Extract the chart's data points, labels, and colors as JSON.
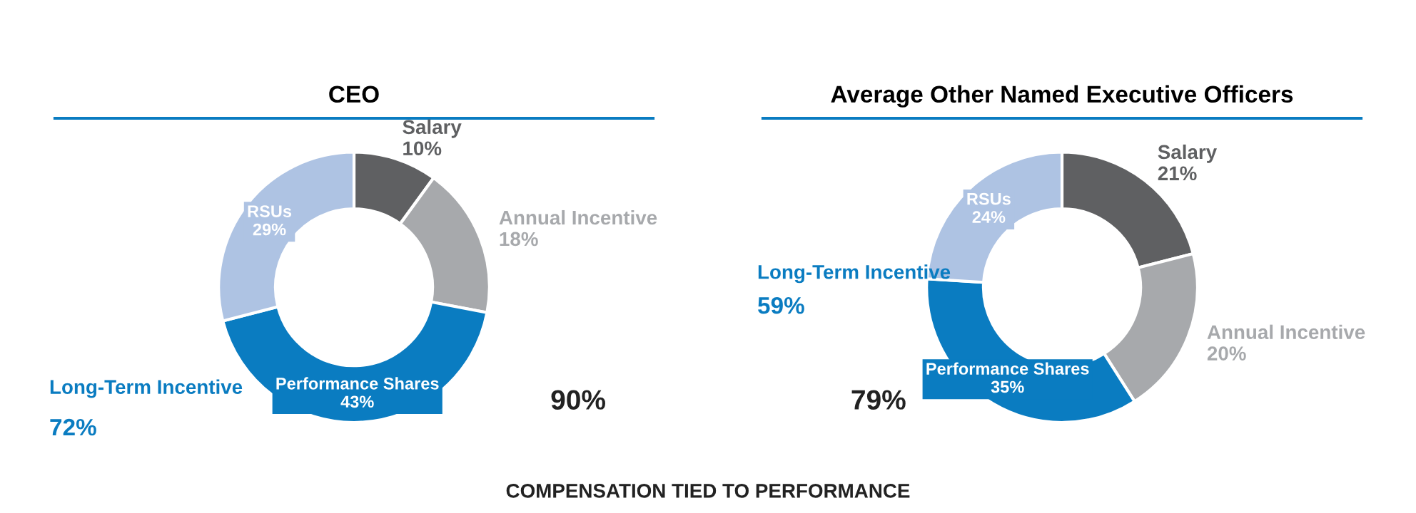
{
  "chart_data": [
    {
      "type": "donut",
      "title": "CEO",
      "categories": [
        "Salary",
        "Annual Incentive",
        "Performance Shares",
        "RSUs"
      ],
      "values": [
        10,
        18,
        43,
        29
      ],
      "value_labels": [
        "10%",
        "18%",
        "43%",
        "29%"
      ],
      "colors": [
        "#5f6062",
        "#a7a9ac",
        "#0a7cc1",
        "#aec3e3"
      ],
      "annotations": [
        "Long-Term Incentive",
        "72%",
        "90%"
      ]
    },
    {
      "type": "donut",
      "title": "Average Other Named Executive Officers",
      "categories": [
        "Salary",
        "Annual Incentive",
        "Performance Shares",
        "RSUs"
      ],
      "values": [
        21,
        20,
        35,
        24
      ],
      "value_labels": [
        "21%",
        "20%",
        "35%",
        "24%"
      ],
      "colors": [
        "#5f6062",
        "#a7a9ac",
        "#0a7cc1",
        "#aec3e3"
      ],
      "annotations": [
        "Long-Term Incentive",
        "59%",
        "79%",
        "COMPENSATION TIED TO PERFORMANCE"
      ]
    }
  ]
}
